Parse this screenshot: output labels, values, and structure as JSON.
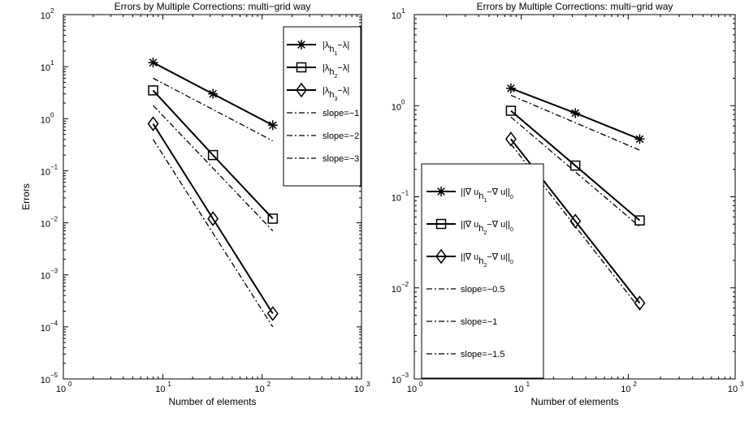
{
  "chart_data": [
    {
      "type": "line",
      "title": "Errors by Multiple Corrections: multi−grid way",
      "xlabel": "Number of elements",
      "ylabel": "Errors",
      "xscale": "log",
      "yscale": "log",
      "xlim": [
        1,
        1000
      ],
      "ylim": [
        1e-05,
        100
      ],
      "xticks": [
        {
          "base": "10",
          "exp": "0"
        },
        {
          "base": "10",
          "exp": "1"
        },
        {
          "base": "10",
          "exp": "2"
        },
        {
          "base": "10",
          "exp": "3"
        }
      ],
      "yticks": [
        {
          "base": "10",
          "exp": "−5"
        },
        {
          "base": "10",
          "exp": "−4"
        },
        {
          "base": "10",
          "exp": "−3"
        },
        {
          "base": "10",
          "exp": "−2"
        },
        {
          "base": "10",
          "exp": "−1"
        },
        {
          "base": "10",
          "exp": "0"
        },
        {
          "base": "10",
          "exp": "1"
        },
        {
          "base": "10",
          "exp": "2"
        }
      ],
      "grid": false,
      "legend_position": "top-right",
      "series": [
        {
          "name": "|λ_h1 −λ|",
          "legend": {
            "main": "|λ",
            "sub1": "h",
            "sub2": "1",
            "rest": "−λ|"
          },
          "marker": "star",
          "linestyle": "solid",
          "x": [
            8,
            32,
            128
          ],
          "y": [
            12,
            3.0,
            0.75
          ]
        },
        {
          "name": "|λ_h2 −λ|",
          "legend": {
            "main": "|λ",
            "sub1": "h",
            "sub2": "2",
            "rest": "−λ|"
          },
          "marker": "square",
          "linestyle": "solid",
          "x": [
            8,
            32,
            128
          ],
          "y": [
            3.5,
            0.2,
            0.012
          ]
        },
        {
          "name": "|λ_h3 −λ|",
          "legend": {
            "main": "|λ",
            "sub1": "h",
            "sub2": "3",
            "rest": "−λ|"
          },
          "marker": "diamond",
          "linestyle": "solid",
          "x": [
            8,
            32,
            128
          ],
          "y": [
            0.8,
            0.012,
            0.00018
          ]
        },
        {
          "name": "slope=−1",
          "legend": {
            "main": "slope=−1"
          },
          "marker": "none",
          "linestyle": "dashdot",
          "x": [
            8,
            128
          ],
          "y": [
            6,
            0.375
          ]
        },
        {
          "name": "slope=−2",
          "legend": {
            "main": "slope=−2"
          },
          "marker": "none",
          "linestyle": "dashdot",
          "x": [
            8,
            128
          ],
          "y": [
            1.8,
            0.007
          ]
        },
        {
          "name": "slope=−3",
          "legend": {
            "main": "slope=−3"
          },
          "marker": "none",
          "linestyle": "dashdot",
          "x": [
            8,
            128
          ],
          "y": [
            0.4,
            0.0001
          ]
        }
      ]
    },
    {
      "type": "line",
      "title": "Errors by Multiple Corrections: multi−grid way",
      "xlabel": "Number of elements",
      "ylabel": "",
      "xscale": "log",
      "yscale": "log",
      "xlim": [
        1,
        1000
      ],
      "ylim": [
        0.001,
        10
      ],
      "xticks": [
        {
          "base": "10",
          "exp": "0"
        },
        {
          "base": "10",
          "exp": "1"
        },
        {
          "base": "10",
          "exp": "2"
        },
        {
          "base": "10",
          "exp": "3"
        }
      ],
      "yticks": [
        {
          "base": "10",
          "exp": "−3"
        },
        {
          "base": "10",
          "exp": "−2"
        },
        {
          "base": "10",
          "exp": "−1"
        },
        {
          "base": "10",
          "exp": "0"
        },
        {
          "base": "10",
          "exp": "1"
        }
      ],
      "grid": false,
      "legend_position": "left",
      "series": [
        {
          "name": "||∇ u_h1 −∇ u||_0",
          "legend": {
            "main": "||∇ u",
            "sub1": "h",
            "sub2": "1",
            "rest": "−∇ u||",
            "sub3": "0"
          },
          "marker": "star",
          "linestyle": "solid",
          "x": [
            8,
            32,
            128
          ],
          "y": [
            1.55,
            0.83,
            0.43
          ]
        },
        {
          "name": "||∇ u_h2 −∇ u||_0",
          "legend": {
            "main": "||∇ u",
            "sub1": "h",
            "sub2": "2",
            "rest": "−∇ u||",
            "sub3": "0"
          },
          "marker": "square",
          "linestyle": "solid",
          "x": [
            8,
            32,
            128
          ],
          "y": [
            0.88,
            0.22,
            0.055
          ]
        },
        {
          "name": "||∇ u_h2 −∇ u||_0",
          "legend": {
            "main": "||∇ u",
            "sub1": "h",
            "sub2": "2",
            "rest": "−∇ u||",
            "sub3": "0"
          },
          "marker": "diamond",
          "linestyle": "solid",
          "x": [
            8,
            32,
            128
          ],
          "y": [
            0.43,
            0.054,
            0.0068
          ]
        },
        {
          "name": "slope=−0.5",
          "legend": {
            "main": "slope=−0.5"
          },
          "marker": "none",
          "linestyle": "dashdot",
          "x": [
            8,
            128
          ],
          "y": [
            1.3,
            0.325
          ]
        },
        {
          "name": "slope=−1",
          "legend": {
            "main": "slope=−1"
          },
          "marker": "none",
          "linestyle": "dashdot",
          "x": [
            8,
            128
          ],
          "y": [
            0.75,
            0.047
          ]
        },
        {
          "name": "slope=−1.5",
          "legend": {
            "main": "slope=−1.5"
          },
          "marker": "none",
          "linestyle": "dashdot",
          "x": [
            8,
            128
          ],
          "y": [
            0.38,
            0.0059
          ]
        }
      ]
    }
  ]
}
